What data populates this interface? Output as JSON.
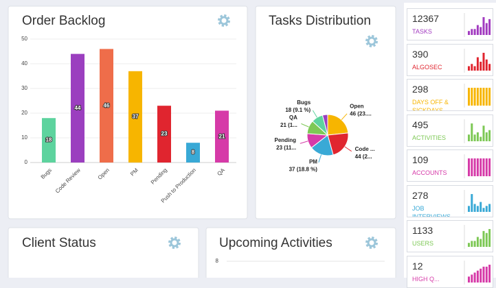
{
  "chart_data": [
    {
      "type": "bar",
      "title": "Order Backlog",
      "categories": [
        "Bugs",
        "Code Review",
        "Open",
        "PM",
        "Pending",
        "Push to Production",
        "QA"
      ],
      "values": [
        18,
        44,
        46,
        37,
        23,
        8,
        21
      ],
      "colors": [
        "#5dd39e",
        "#9b3fbf",
        "#ef6d4a",
        "#f7b500",
        "#e0252f",
        "#39a9d6",
        "#d63aa8"
      ],
      "ylim": [
        0,
        50
      ],
      "yticks": [
        0,
        10,
        20,
        30,
        40,
        50
      ],
      "grid": true
    },
    {
      "type": "pie",
      "title": "Tasks Distribution",
      "categories": [
        "Open",
        "Code ...",
        "PM",
        "Pending",
        "QA",
        "Bugs",
        null
      ],
      "values": [
        46,
        44,
        37,
        23,
        21,
        18,
        8
      ],
      "value_labels": [
        "46 (23....",
        "44 (2...",
        "37 (18.8 %)",
        "23 (11...",
        "21 (1...",
        "18 (9.1 %)",
        null
      ],
      "colors": [
        "#f7b500",
        "#e0252f",
        "#39a9d6",
        "#d63aa8",
        "#7dc855",
        "#5dd39e",
        "#9b3fbf"
      ]
    },
    {
      "type": "line",
      "title": "Upcoming Activities",
      "ylim": [
        0,
        8
      ],
      "yticks": [
        8
      ],
      "grid": true
    }
  ],
  "panels": {
    "client_status": {
      "title": "Client Status"
    }
  },
  "stats": [
    {
      "value": 12367,
      "label": "TASKS",
      "color": "#a23bc0",
      "values": [
        2,
        3,
        3,
        5,
        4,
        9,
        6,
        8
      ]
    },
    {
      "value": 390,
      "label": "ALGOSEC",
      "color": "#e0252f",
      "values": [
        2,
        3,
        2,
        6,
        4,
        8,
        5,
        3
      ]
    },
    {
      "value": 298,
      "label": "DAYS OFF & SICKDAYS",
      "color": "#f7b500",
      "values": [
        6,
        6,
        6,
        6,
        6,
        6,
        6,
        6
      ]
    },
    {
      "value": 495,
      "label": "ACTIVITIES",
      "color": "#7dc855",
      "values": [
        3,
        8,
        3,
        4,
        2,
        7,
        4,
        5
      ]
    },
    {
      "value": 109,
      "label": "ACCOUNTS",
      "color": "#d63aa8",
      "values": [
        6,
        6,
        6,
        6,
        6,
        6,
        6,
        6
      ]
    },
    {
      "value": 278,
      "label": "JOB INTERVIEWS",
      "color": "#39a9d6",
      "values": [
        3,
        9,
        4,
        3,
        5,
        2,
        3,
        4
      ]
    },
    {
      "value": 1133,
      "label": "USERS",
      "color": "#7dc855",
      "values": [
        2,
        3,
        3,
        5,
        4,
        8,
        7,
        9
      ]
    },
    {
      "value": 12,
      "label": "HIGH Q...",
      "color": "#d63aa8",
      "values": [
        3,
        4,
        5,
        6,
        7,
        8,
        8,
        9
      ]
    }
  ]
}
